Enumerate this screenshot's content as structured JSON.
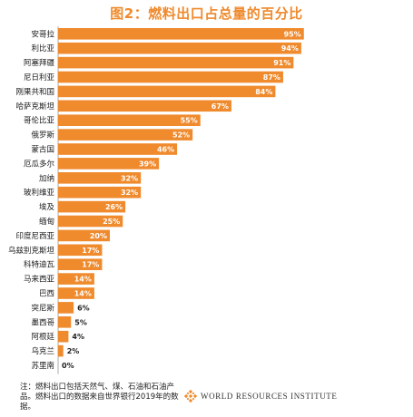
{
  "title": "图2：燃料出口占总量的百分比",
  "chart_data": {
    "type": "bar",
    "orientation": "horizontal",
    "title": "图2：燃料出口占总量的百分比",
    "categories": [
      "安哥拉",
      "利比亚",
      "阿塞拜疆",
      "尼日利亚",
      "刚果共和国",
      "哈萨克斯坦",
      "哥伦比亚",
      "俄罗斯",
      "蒙古国",
      "厄瓜多尔",
      "加纳",
      "玻利维亚",
      "埃及",
      "缅甸",
      "印度尼西亚",
      "乌兹别克斯坦",
      "科特迪瓦",
      "马来西亚",
      "巴西",
      "突尼斯",
      "墨西哥",
      "阿根廷",
      "乌克兰",
      "苏里南"
    ],
    "values": [
      95,
      94,
      91,
      87,
      84,
      67,
      55,
      52,
      46,
      39,
      32,
      32,
      26,
      25,
      20,
      17,
      17,
      14,
      14,
      6,
      5,
      4,
      2,
      0
    ],
    "labels": [
      "95%",
      "94%",
      "91%",
      "87%",
      "84%",
      "67%",
      "55%",
      "52%",
      "46%",
      "39%",
      "32%",
      "32%",
      "26%",
      "25%",
      "20%",
      "17%",
      "17%",
      "14%",
      "14%",
      "6%",
      "5%",
      "4%",
      "2%",
      "0%"
    ],
    "xlim": [
      0,
      100
    ],
    "grid": false,
    "legend": "none",
    "colors": {
      "bar": "#ef8a2d",
      "label_inside": "#ffffff",
      "label_outside": "#222222"
    }
  },
  "footnote": "注：燃料出口包括天然气、煤、石油和石油产品。燃料出口的数据来自世界银行2019年的数据。",
  "logo": {
    "text": "WORLD RESOURCES INSTITUTE",
    "icon": "wri-logo-icon",
    "color": "#ef8a2d"
  }
}
